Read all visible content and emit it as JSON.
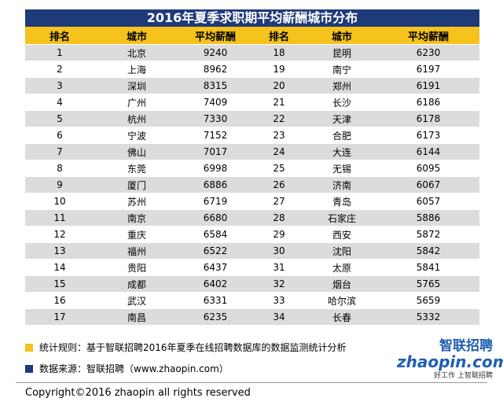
{
  "title": "2016年夏季求职期平均薪酬城市分布",
  "table": {
    "header": [
      "排名",
      "城市",
      "平均薪酬",
      "排名",
      "城市",
      "平均薪酬"
    ],
    "rows": [
      [
        1,
        "北京",
        9240,
        18,
        "昆明",
        6230
      ],
      [
        2,
        "上海",
        8962,
        19,
        "南宁",
        6197
      ],
      [
        3,
        "深圳",
        8315,
        20,
        "郑州",
        6191
      ],
      [
        4,
        "广州",
        7409,
        21,
        "长沙",
        6186
      ],
      [
        5,
        "杭州",
        7330,
        22,
        "天津",
        6178
      ],
      [
        6,
        "宁波",
        7152,
        23,
        "合肥",
        6173
      ],
      [
        7,
        "佛山",
        7017,
        24,
        "大连",
        6144
      ],
      [
        8,
        "东莞",
        6998,
        25,
        "无锡",
        6095
      ],
      [
        9,
        "厦门",
        6886,
        26,
        "济南",
        6067
      ],
      [
        10,
        "苏州",
        6719,
        27,
        "青岛",
        6057
      ],
      [
        11,
        "南京",
        6680,
        28,
        "石家庄",
        5886
      ],
      [
        12,
        "重庆",
        6584,
        29,
        "西安",
        5872
      ],
      [
        13,
        "福州",
        6522,
        30,
        "沈阳",
        5842
      ],
      [
        14,
        "贵阳",
        6437,
        31,
        "太原",
        5841
      ],
      [
        15,
        "成都",
        6402,
        32,
        "烟台",
        5765
      ],
      [
        16,
        "武汉",
        6331,
        33,
        "哈尔滨",
        5659
      ],
      [
        17,
        "南昌",
        6235,
        34,
        "长春",
        5332
      ]
    ]
  },
  "notes": [
    "统计规则：基于智联招聘2016年夏季在线招聘数据库的数据监测统计分析",
    "数据来源：智联招聘（www.zhaopin.com）"
  ],
  "logo": {
    "name": "智联招聘",
    "domain": "zhaopin.com",
    "slogan": "好工作 上智联招聘"
  },
  "copyright": "Copyright©2016 zhaopin all rights reserved"
}
